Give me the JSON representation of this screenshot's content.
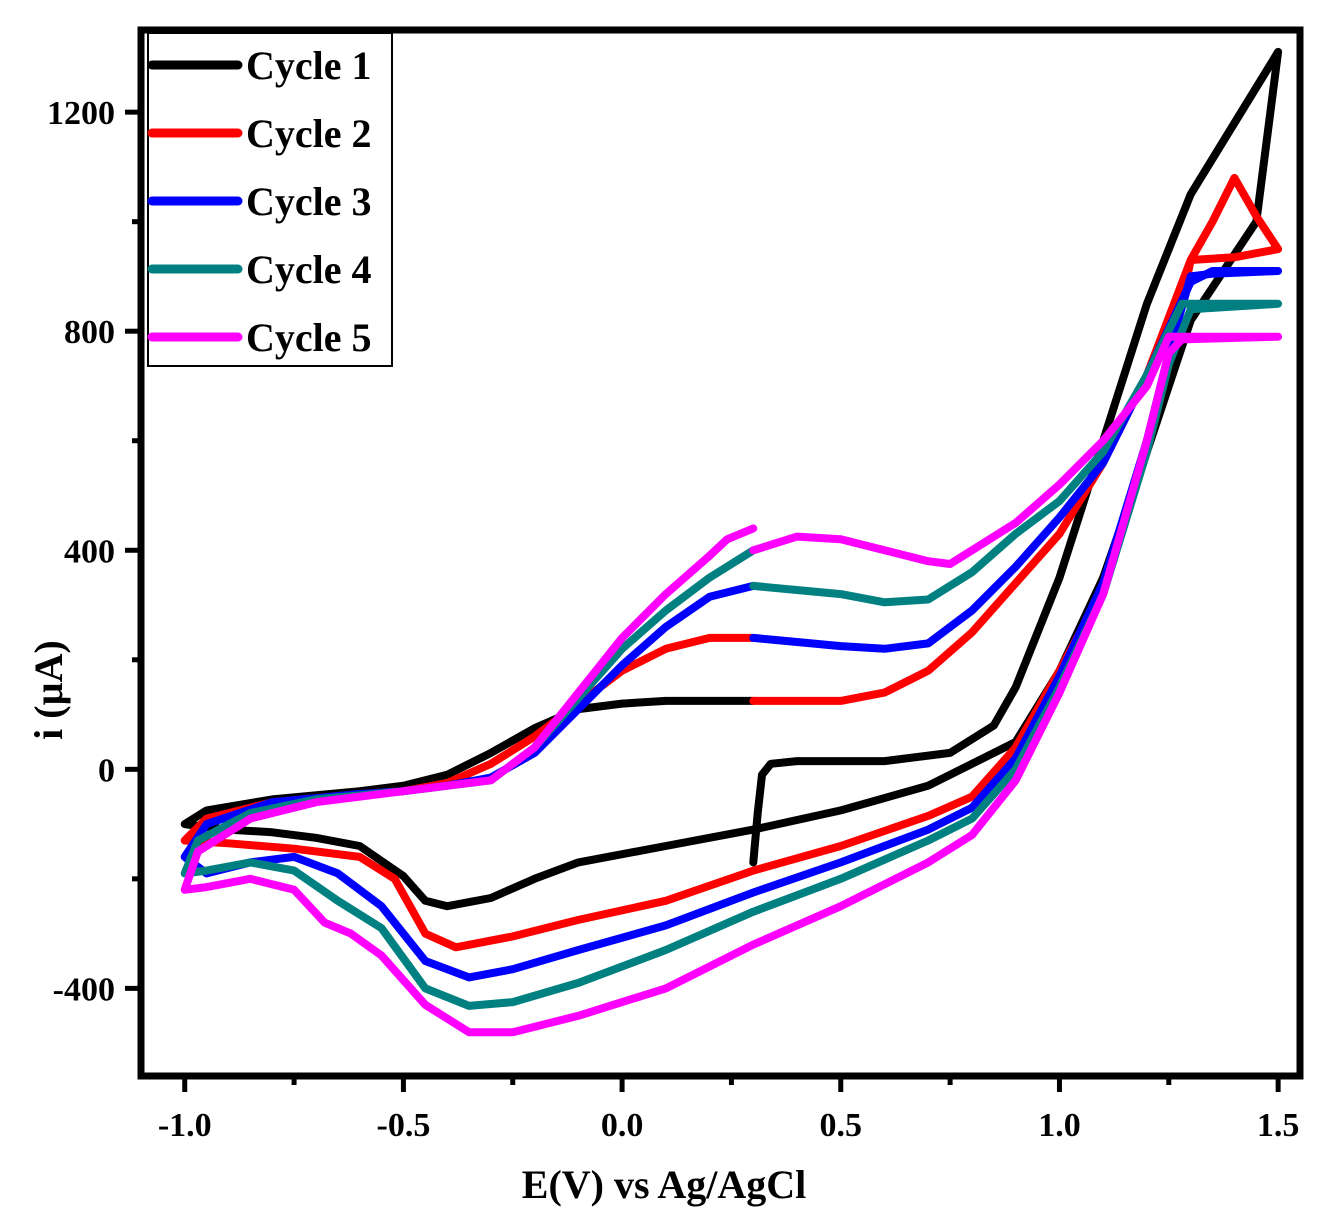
{
  "chart_data": {
    "type": "line",
    "title": "",
    "xlabel": "E(V) vs Ag/AgCl",
    "ylabel": "i (µA)",
    "xlim": [
      -1.1,
      1.55
    ],
    "ylim": [
      -560,
      1350
    ],
    "xticks": [
      -1.0,
      -0.5,
      0.0,
      0.5,
      1.0,
      1.5
    ],
    "xtick_labels": [
      "-1.0",
      "-0.5",
      "0.0",
      "0.5",
      "1.0",
      "1.5"
    ],
    "yticks": [
      -400,
      0,
      400,
      800,
      1200
    ],
    "ytick_labels": [
      "-400",
      "0",
      "400",
      "800",
      "1200"
    ],
    "grid": false,
    "legend_position": "top-left",
    "series": [
      {
        "name": "Cycle 1",
        "color": "#000000",
        "points": [
          [
            0.3,
            -170
          ],
          [
            0.31,
            -80
          ],
          [
            0.32,
            -10
          ],
          [
            0.34,
            10
          ],
          [
            0.4,
            15
          ],
          [
            0.6,
            15
          ],
          [
            0.75,
            30
          ],
          [
            0.85,
            80
          ],
          [
            0.9,
            150
          ],
          [
            1.0,
            350
          ],
          [
            1.1,
            600
          ],
          [
            1.2,
            850
          ],
          [
            1.3,
            1050
          ],
          [
            1.4,
            1180
          ],
          [
            1.5,
            1310
          ],
          [
            1.45,
            1000
          ],
          [
            1.3,
            820
          ],
          [
            1.2,
            580
          ],
          [
            1.1,
            350
          ],
          [
            1.0,
            180
          ],
          [
            0.9,
            50
          ],
          [
            0.8,
            10
          ],
          [
            0.7,
            -30
          ],
          [
            0.5,
            -75
          ],
          [
            0.3,
            -110
          ],
          [
            0.1,
            -140
          ],
          [
            -0.1,
            -170
          ],
          [
            -0.2,
            -200
          ],
          [
            -0.3,
            -235
          ],
          [
            -0.4,
            -250
          ],
          [
            -0.45,
            -240
          ],
          [
            -0.5,
            -195
          ],
          [
            -0.6,
            -140
          ],
          [
            -0.7,
            -125
          ],
          [
            -0.8,
            -115
          ],
          [
            -0.9,
            -110
          ],
          [
            -1.0,
            -100
          ],
          [
            -0.95,
            -75
          ],
          [
            -0.8,
            -55
          ],
          [
            -0.6,
            -40
          ],
          [
            -0.5,
            -30
          ],
          [
            -0.4,
            -10
          ],
          [
            -0.3,
            30
          ],
          [
            -0.2,
            75
          ],
          [
            -0.1,
            110
          ],
          [
            0.0,
            120
          ],
          [
            0.1,
            125
          ],
          [
            0.3,
            125
          ]
        ]
      },
      {
        "name": "Cycle 2",
        "color": "#ff0000",
        "points": [
          [
            0.3,
            125
          ],
          [
            0.5,
            125
          ],
          [
            0.6,
            140
          ],
          [
            0.7,
            180
          ],
          [
            0.8,
            250
          ],
          [
            0.9,
            340
          ],
          [
            1.0,
            430
          ],
          [
            1.1,
            560
          ],
          [
            1.2,
            720
          ],
          [
            1.3,
            930
          ],
          [
            1.35,
            1000
          ],
          [
            1.4,
            1080
          ],
          [
            1.45,
            1010
          ],
          [
            1.5,
            950
          ],
          [
            1.4,
            935
          ],
          [
            1.3,
            930
          ],
          [
            1.25,
            740
          ],
          [
            1.2,
            580
          ],
          [
            1.1,
            330
          ],
          [
            1.0,
            180
          ],
          [
            0.9,
            40
          ],
          [
            0.8,
            -50
          ],
          [
            0.7,
            -85
          ],
          [
            0.5,
            -140
          ],
          [
            0.3,
            -185
          ],
          [
            0.1,
            -240
          ],
          [
            -0.1,
            -275
          ],
          [
            -0.25,
            -305
          ],
          [
            -0.38,
            -325
          ],
          [
            -0.45,
            -300
          ],
          [
            -0.52,
            -200
          ],
          [
            -0.6,
            -160
          ],
          [
            -0.75,
            -145
          ],
          [
            -0.9,
            -135
          ],
          [
            -1.0,
            -130
          ],
          [
            -0.95,
            -90
          ],
          [
            -0.8,
            -60
          ],
          [
            -0.6,
            -45
          ],
          [
            -0.5,
            -40
          ],
          [
            -0.4,
            -25
          ],
          [
            -0.3,
            10
          ],
          [
            -0.2,
            60
          ],
          [
            -0.1,
            120
          ],
          [
            0.0,
            180
          ],
          [
            0.1,
            220
          ],
          [
            0.2,
            240
          ],
          [
            0.3,
            240
          ]
        ]
      },
      {
        "name": "Cycle 3",
        "color": "#0000ff",
        "points": [
          [
            0.3,
            240
          ],
          [
            0.5,
            225
          ],
          [
            0.6,
            220
          ],
          [
            0.7,
            230
          ],
          [
            0.8,
            290
          ],
          [
            0.9,
            370
          ],
          [
            1.0,
            460
          ],
          [
            1.1,
            560
          ],
          [
            1.2,
            720
          ],
          [
            1.3,
            890
          ],
          [
            1.35,
            910
          ],
          [
            1.5,
            910
          ],
          [
            1.35,
            905
          ],
          [
            1.3,
            900
          ],
          [
            1.25,
            760
          ],
          [
            1.2,
            600
          ],
          [
            1.1,
            340
          ],
          [
            1.0,
            170
          ],
          [
            0.9,
            20
          ],
          [
            0.8,
            -70
          ],
          [
            0.7,
            -110
          ],
          [
            0.5,
            -170
          ],
          [
            0.3,
            -225
          ],
          [
            0.1,
            -285
          ],
          [
            -0.1,
            -330
          ],
          [
            -0.25,
            -365
          ],
          [
            -0.35,
            -380
          ],
          [
            -0.45,
            -350
          ],
          [
            -0.55,
            -250
          ],
          [
            -0.65,
            -190
          ],
          [
            -0.75,
            -160
          ],
          [
            -0.85,
            -170
          ],
          [
            -0.95,
            -190
          ],
          [
            -1.0,
            -160
          ],
          [
            -0.95,
            -100
          ],
          [
            -0.8,
            -60
          ],
          [
            -0.6,
            -45
          ],
          [
            -0.5,
            -40
          ],
          [
            -0.4,
            -30
          ],
          [
            -0.3,
            -15
          ],
          [
            -0.2,
            30
          ],
          [
            -0.1,
            110
          ],
          [
            0.0,
            190
          ],
          [
            0.1,
            260
          ],
          [
            0.2,
            315
          ],
          [
            0.3,
            335
          ]
        ]
      },
      {
        "name": "Cycle 4",
        "color": "#008080",
        "points": [
          [
            0.3,
            335
          ],
          [
            0.5,
            320
          ],
          [
            0.6,
            305
          ],
          [
            0.7,
            310
          ],
          [
            0.8,
            360
          ],
          [
            0.9,
            430
          ],
          [
            1.0,
            490
          ],
          [
            1.1,
            580
          ],
          [
            1.2,
            720
          ],
          [
            1.28,
            850
          ],
          [
            1.3,
            850
          ],
          [
            1.5,
            850
          ],
          [
            1.3,
            840
          ],
          [
            1.25,
            740
          ],
          [
            1.2,
            580
          ],
          [
            1.1,
            320
          ],
          [
            1.0,
            150
          ],
          [
            0.9,
            0
          ],
          [
            0.8,
            -90
          ],
          [
            0.7,
            -130
          ],
          [
            0.5,
            -200
          ],
          [
            0.3,
            -260
          ],
          [
            0.1,
            -330
          ],
          [
            -0.1,
            -390
          ],
          [
            -0.25,
            -425
          ],
          [
            -0.35,
            -432
          ],
          [
            -0.45,
            -400
          ],
          [
            -0.55,
            -290
          ],
          [
            -0.65,
            -240
          ],
          [
            -0.75,
            -185
          ],
          [
            -0.85,
            -170
          ],
          [
            -0.95,
            -185
          ],
          [
            -1.0,
            -190
          ],
          [
            -0.97,
            -130
          ],
          [
            -0.85,
            -80
          ],
          [
            -0.7,
            -55
          ],
          [
            -0.5,
            -40
          ],
          [
            -0.3,
            -20
          ],
          [
            -0.2,
            40
          ],
          [
            -0.1,
            130
          ],
          [
            0.0,
            220
          ],
          [
            0.1,
            290
          ],
          [
            0.2,
            350
          ],
          [
            0.3,
            400
          ]
        ]
      },
      {
        "name": "Cycle 5",
        "color": "#ff00ff",
        "points": [
          [
            0.3,
            400
          ],
          [
            0.4,
            425
          ],
          [
            0.5,
            420
          ],
          [
            0.6,
            400
          ],
          [
            0.7,
            380
          ],
          [
            0.75,
            375
          ],
          [
            0.8,
            400
          ],
          [
            0.9,
            450
          ],
          [
            1.0,
            520
          ],
          [
            1.1,
            600
          ],
          [
            1.2,
            700
          ],
          [
            1.25,
            790
          ],
          [
            1.3,
            790
          ],
          [
            1.5,
            790
          ],
          [
            1.28,
            785
          ],
          [
            1.25,
            760
          ],
          [
            1.2,
            600
          ],
          [
            1.1,
            320
          ],
          [
            1.0,
            140
          ],
          [
            0.9,
            -20
          ],
          [
            0.8,
            -120
          ],
          [
            0.7,
            -170
          ],
          [
            0.5,
            -250
          ],
          [
            0.3,
            -320
          ],
          [
            0.1,
            -400
          ],
          [
            -0.1,
            -450
          ],
          [
            -0.25,
            -480
          ],
          [
            -0.35,
            -480
          ],
          [
            -0.45,
            -430
          ],
          [
            -0.55,
            -340
          ],
          [
            -0.62,
            -300
          ],
          [
            -0.68,
            -280
          ],
          [
            -0.75,
            -220
          ],
          [
            -0.85,
            -200
          ],
          [
            -0.95,
            -215
          ],
          [
            -1.0,
            -220
          ],
          [
            -0.97,
            -150
          ],
          [
            -0.85,
            -90
          ],
          [
            -0.7,
            -60
          ],
          [
            -0.5,
            -40
          ],
          [
            -0.3,
            -20
          ],
          [
            -0.2,
            40
          ],
          [
            -0.1,
            140
          ],
          [
            0.0,
            240
          ],
          [
            0.1,
            320
          ],
          [
            0.2,
            390
          ],
          [
            0.24,
            420
          ],
          [
            0.3,
            440
          ]
        ]
      }
    ]
  }
}
